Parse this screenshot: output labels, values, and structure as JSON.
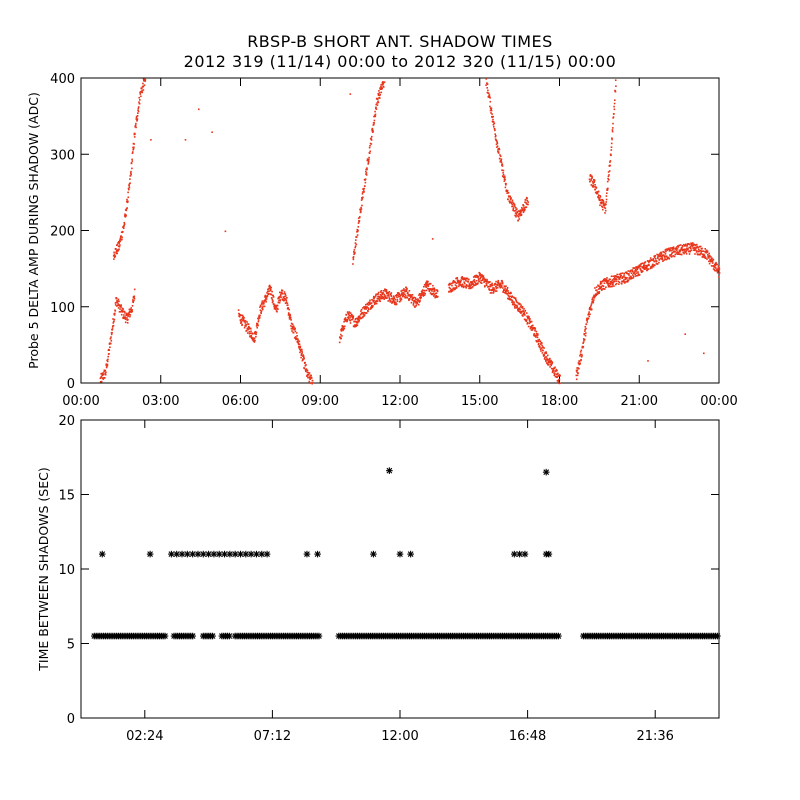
{
  "title": "RBSP-B SHORT ANT. SHADOW TIMES",
  "subtitle": "2012 319 (11/14) 00:00 to 2012 320 (11/15) 00:00",
  "colors": {
    "top_series": "#e8351b",
    "bottom_series": "#000000",
    "background": "#ffffff"
  },
  "chart_data": [
    {
      "type": "scatter",
      "ylabel": "Probe 5 DELTA AMP DURING SHADOW (ADC)",
      "xlabel": "",
      "xlim": [
        0,
        24
      ],
      "ylim": [
        0,
        400
      ],
      "x_unit": "hours",
      "xticks": [
        0,
        3,
        6,
        9,
        12,
        15,
        18,
        21,
        24
      ],
      "xtick_labels": [
        "00:00",
        "03:00",
        "06:00",
        "09:00",
        "12:00",
        "15:00",
        "18:00",
        "21:00",
        "00:00"
      ],
      "yticks": [
        0,
        100,
        200,
        300,
        400
      ],
      "ytick_labels": [
        "0",
        "100",
        "200",
        "300",
        "400"
      ],
      "series": [
        {
          "color": "#e8351b",
          "segments": [
            {
              "x": [
                0.7,
                0.9,
                1.1,
                1.3,
                1.5,
                1.7,
                1.9,
                2.0
              ],
              "y": [
                5,
                15,
                60,
                110,
                95,
                85,
                100,
                120
              ]
            },
            {
              "x": [
                1.2,
                1.4,
                1.6,
                1.8,
                2.0,
                2.2,
                2.4
              ],
              "y": [
                170,
                180,
                210,
                260,
                330,
                380,
                400
              ]
            },
            {
              "x": [
                5.9,
                6.1,
                6.3,
                6.5,
                6.7,
                6.9,
                7.1,
                7.3,
                7.5,
                7.7,
                7.9,
                8.1,
                8.3,
                8.5,
                8.7
              ],
              "y": [
                90,
                80,
                70,
                60,
                95,
                110,
                125,
                95,
                120,
                110,
                75,
                60,
                35,
                10,
                2
              ]
            },
            {
              "x": [
                9.7,
                10.0,
                10.3,
                10.6,
                11.0,
                11.4,
                11.8,
                12.2,
                12.6,
                13.0,
                13.4
              ],
              "y": [
                60,
                90,
                80,
                95,
                110,
                118,
                110,
                120,
                105,
                130,
                115
              ]
            },
            {
              "x": [
                10.2,
                10.5,
                10.8,
                11.1,
                11.4
              ],
              "y": [
                160,
                230,
                300,
                370,
                400
              ]
            },
            {
              "x": [
                13.8,
                14.2,
                14.6,
                15.0,
                15.4,
                15.8,
                16.2,
                16.6,
                17.0,
                17.4,
                17.8,
                18.0
              ],
              "y": [
                125,
                135,
                130,
                140,
                125,
                130,
                110,
                95,
                70,
                40,
                15,
                5
              ]
            },
            {
              "x": [
                15.2,
                15.6,
                16.0,
                16.4,
                16.8
              ],
              "y": [
                400,
                320,
                250,
                220,
                240
              ]
            },
            {
              "x": [
                18.6,
                18.8,
                19.0,
                19.3,
                19.6,
                20.0,
                20.5,
                21.0,
                21.5,
                22.0,
                22.5,
                23.0,
                23.5,
                24.0
              ],
              "y": [
                10,
                40,
                80,
                120,
                130,
                135,
                140,
                150,
                160,
                170,
                175,
                178,
                170,
                145
              ]
            },
            {
              "x": [
                19.1,
                19.3,
                19.5,
                19.7,
                19.9,
                20.1
              ],
              "y": [
                270,
                260,
                240,
                230,
                300,
                400
              ]
            }
          ]
        }
      ],
      "outliers": {
        "x": [
          2.6,
          3.9,
          4.4,
          4.9,
          5.4,
          10.1,
          13.2,
          21.3,
          22.7,
          23.4
        ],
        "y": [
          320,
          320,
          360,
          330,
          200,
          380,
          190,
          30,
          65,
          40
        ]
      }
    },
    {
      "type": "scatter",
      "ylabel": "TIME BETWEEN SHADOWS (SEC)",
      "xlabel": "",
      "xlim": [
        0,
        24
      ],
      "ylim": [
        0,
        20
      ],
      "x_unit": "hours",
      "xticks": [
        2.4,
        7.2,
        12.0,
        16.8,
        21.6
      ],
      "xtick_labels": [
        "02:24",
        "07:12",
        "12:00",
        "16:48",
        "21:36"
      ],
      "yticks": [
        0,
        5,
        10,
        15,
        20
      ],
      "ytick_labels": [
        "0",
        "5",
        "10",
        "15",
        "20"
      ],
      "marker": "asterisk",
      "baseline_value": 5.5,
      "baseline_ranges": [
        [
          0.5,
          3.2
        ],
        [
          3.5,
          4.2
        ],
        [
          4.6,
          5.0
        ],
        [
          5.3,
          5.6
        ],
        [
          5.8,
          9.0
        ],
        [
          9.7,
          18.0
        ],
        [
          18.9,
          24.0
        ]
      ],
      "series": [
        {
          "color": "#000000",
          "x": [
            0.8,
            2.6,
            3.4,
            3.6,
            3.8,
            4.0,
            4.2,
            4.4,
            4.6,
            4.8,
            5.0,
            5.2,
            5.4,
            5.6,
            5.8,
            6.0,
            6.2,
            6.4,
            6.6,
            6.8,
            7.0,
            8.5,
            8.9,
            11.0,
            12.0,
            12.4,
            16.3,
            16.5,
            16.7,
            17.5,
            17.6,
            11.6,
            17.5
          ],
          "y": [
            11,
            11,
            11,
            11,
            11,
            11,
            11,
            11,
            11,
            11,
            11,
            11,
            11,
            11,
            11,
            11,
            11,
            11,
            11,
            11,
            11,
            11,
            11,
            11,
            11,
            11,
            11,
            11,
            11,
            11,
            11,
            16.6,
            16.5
          ]
        }
      ]
    }
  ]
}
